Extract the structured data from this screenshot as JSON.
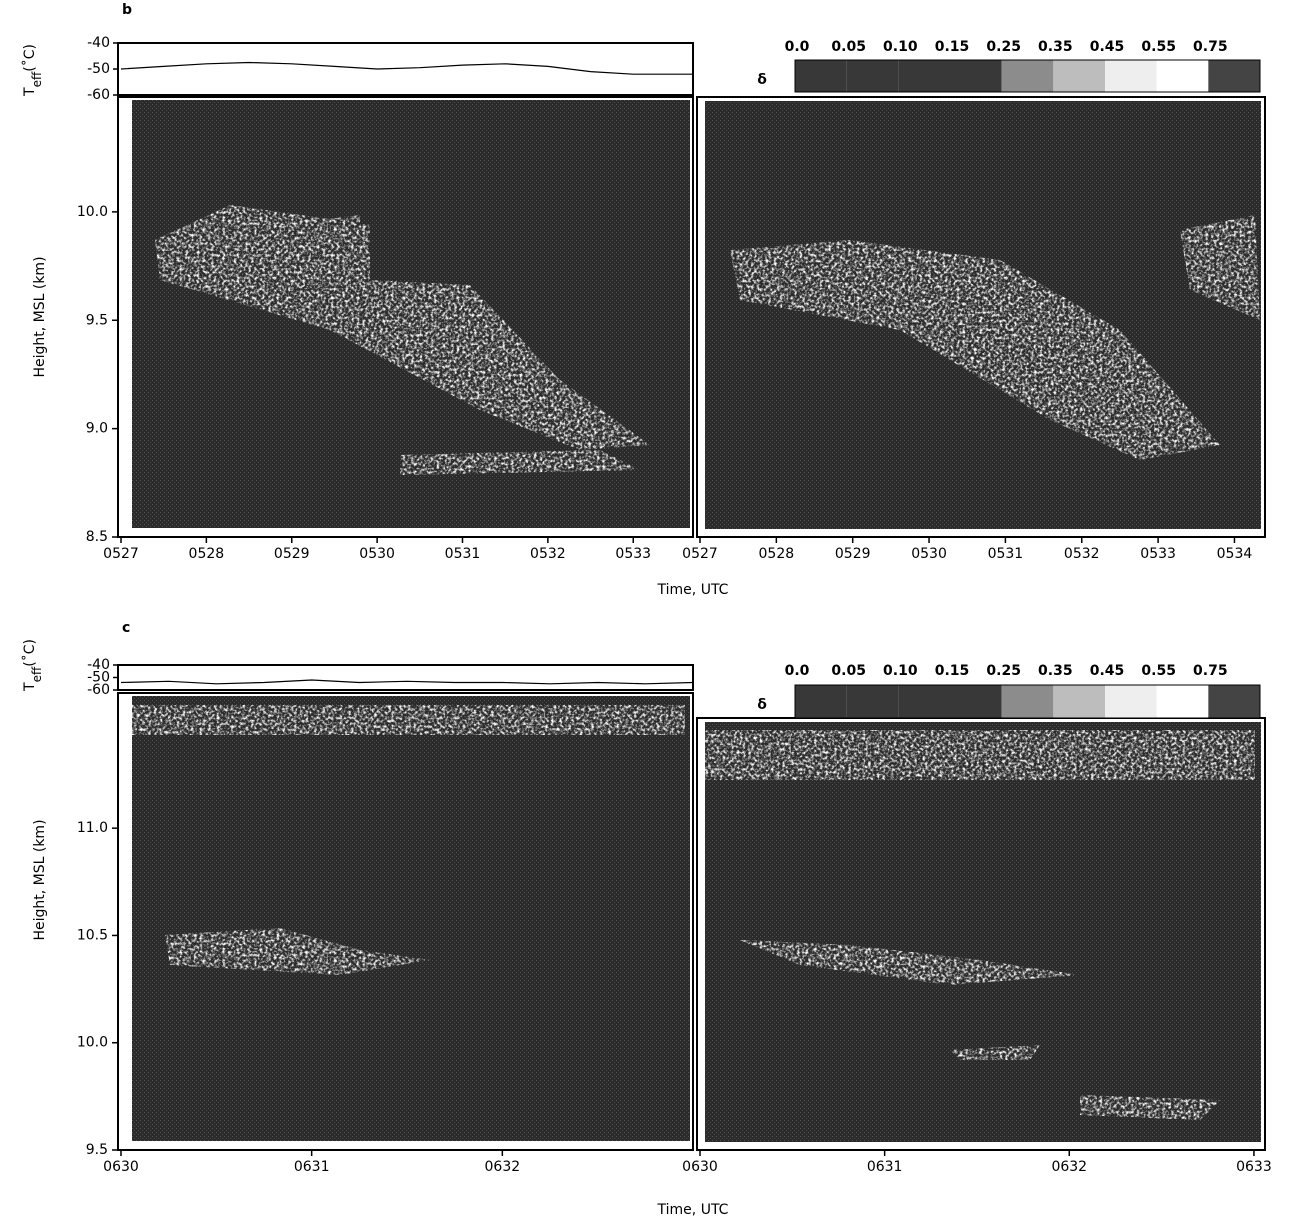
{
  "chart_data": [
    {
      "type": "line",
      "panel_label": "b",
      "temp_label": {
        "base": "T",
        "sub": "eff",
        "unit": "(˚C)"
      },
      "temp_ylim": [
        -60,
        -40
      ],
      "temp_yticks": [
        -40,
        -50,
        -60
      ],
      "x": [
        527,
        527.5,
        528,
        528.5,
        529,
        529.5,
        530,
        530.5,
        531,
        531.5,
        532,
        532.5,
        533,
        533.7
      ],
      "values": [
        -50,
        -49,
        -48,
        -47.5,
        -48,
        -49,
        -50,
        -49.5,
        -48.5,
        -48,
        -49,
        -51,
        -52,
        -52
      ],
      "color": "#000000",
      "y_label": "Height, MSL (km)",
      "x_label": "Time, UTC",
      "ylim": [
        8.5,
        10.53
      ],
      "yticks": [
        8.5,
        {
          "value": 9,
          "label": "9.0"
        },
        9.5,
        {
          "value": 10,
          "label": "10.0"
        }
      ],
      "left": {
        "xlim": [
          527,
          533.7
        ],
        "xticks": [
          {
            "value": 527,
            "label": "0527"
          },
          {
            "value": 528,
            "label": "0528"
          },
          {
            "value": 529,
            "label": "0529"
          },
          {
            "value": 530,
            "label": "0530"
          },
          {
            "value": 531,
            "label": "0531"
          },
          {
            "value": 532,
            "label": "0532"
          },
          {
            "value": 533,
            "label": "0533"
          }
        ]
      },
      "right": {
        "xlim": [
          527,
          534.4
        ],
        "xticks": [
          {
            "value": 527,
            "label": "0527"
          },
          {
            "value": 528,
            "label": "0528"
          },
          {
            "value": 529,
            "label": "0529"
          },
          {
            "value": 530,
            "label": "0530"
          },
          {
            "value": 531,
            "label": "0531"
          },
          {
            "value": 532,
            "label": "0532"
          },
          {
            "value": 533,
            "label": "0533"
          },
          {
            "value": 534,
            "label": "0534"
          }
        ]
      },
      "colorbar": {
        "label": "δ",
        "ticks": [
          {
            "value": 0,
            "label": "0.0"
          },
          0.05,
          {
            "value": 0.1,
            "label": "0.10"
          },
          0.15,
          0.25,
          0.35,
          0.45,
          0.55,
          0.75
        ],
        "colors": [
          "#383838",
          "#383838",
          "#383838",
          "#383838",
          "#8c8c8c",
          "#bdbdbd",
          "#eeeeee",
          "#ffffff",
          "#444444"
        ]
      }
    },
    {
      "type": "line",
      "panel_label": "c",
      "temp_label": {
        "base": "T",
        "sub": "eff",
        "unit": "(˚C)"
      },
      "temp_ylim": [
        -60,
        -40
      ],
      "temp_yticks": [
        -40,
        -50,
        -60
      ],
      "x": [
        630,
        630.25,
        630.5,
        630.75,
        631,
        631.25,
        631.5,
        631.75,
        632,
        632.25,
        632.5,
        632.75,
        633
      ],
      "values": [
        -54,
        -53,
        -55,
        -54,
        -52,
        -54,
        -53,
        -54,
        -54,
        -55,
        -54,
        -55,
        -54
      ],
      "color": "#000000",
      "y_label": "Height, MSL (km)",
      "x_label": "Time, UTC",
      "ylim": [
        9.5,
        11.63
      ],
      "yticks": [
        9.5,
        {
          "value": 10,
          "label": "10.0"
        },
        10.5,
        {
          "value": 11,
          "label": "11.0"
        }
      ],
      "left": {
        "xlim": [
          630,
          633
        ],
        "xticks": [
          {
            "value": 630,
            "label": "0630"
          },
          {
            "value": 631,
            "label": "0631"
          },
          {
            "value": 632,
            "label": "0632"
          }
        ]
      },
      "right": {
        "xlim": [
          630,
          633.06
        ],
        "xticks": [
          {
            "value": 630,
            "label": "0630"
          },
          {
            "value": 631,
            "label": "0631"
          },
          {
            "value": 632,
            "label": "0632"
          },
          {
            "value": 633,
            "label": "0633"
          }
        ]
      },
      "colorbar": {
        "label": "δ",
        "ticks": [
          {
            "value": 0,
            "label": "0.0"
          },
          0.05,
          {
            "value": 0.1,
            "label": "0.10"
          },
          0.15,
          0.25,
          0.35,
          0.45,
          0.55,
          0.75
        ],
        "colors": [
          "#383838",
          "#383838",
          "#383838",
          "#383838",
          "#8c8c8c",
          "#bdbdbd",
          "#eeeeee",
          "#ffffff",
          "#444444"
        ]
      }
    }
  ]
}
